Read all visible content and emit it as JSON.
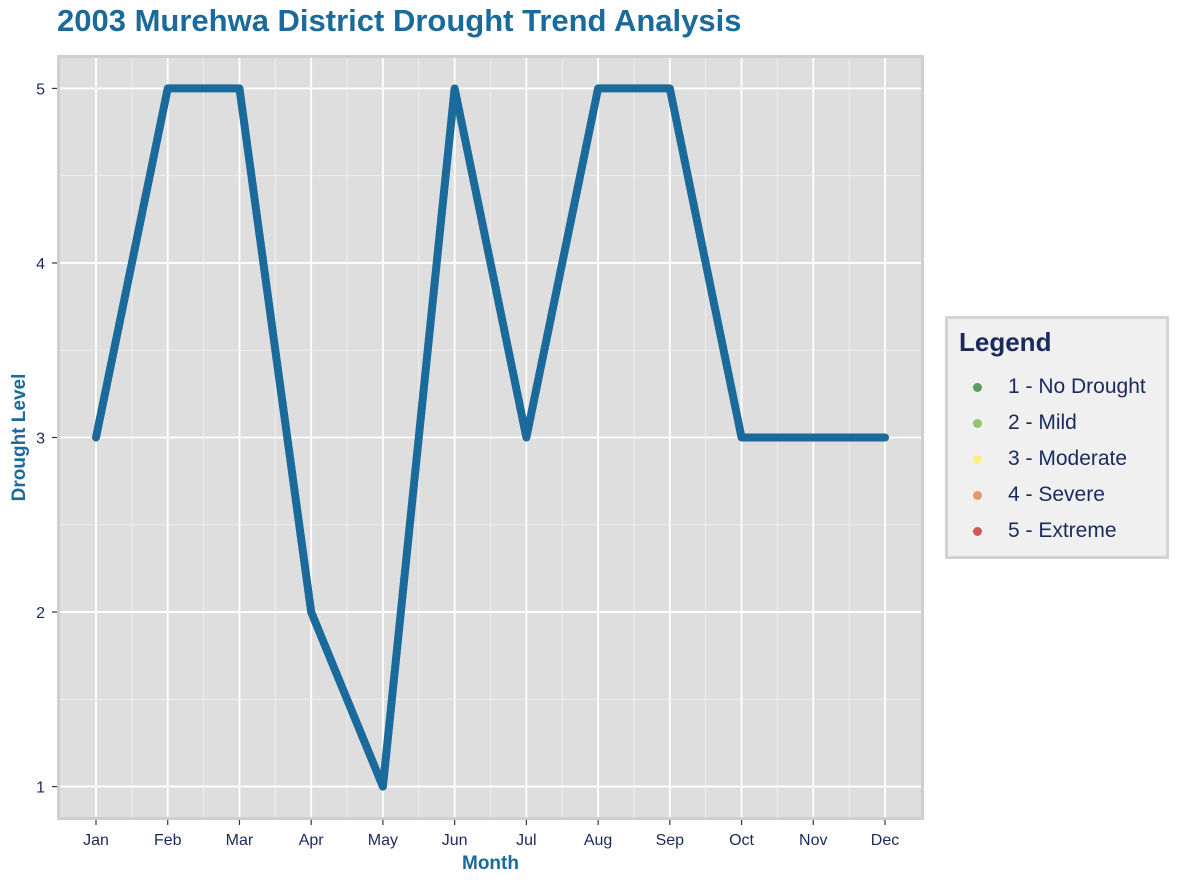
{
  "title": "2003 Murehwa District Drought Trend Analysis",
  "colors": {
    "title": "#1a6a9c",
    "line": "#1a6a9c",
    "panel_bg": "#dedede",
    "grid": "#ffffff",
    "axis_title": "#1a6a9c",
    "tick_text": "#1b2a5c"
  },
  "chart_data": {
    "type": "line",
    "title": "2003 Murehwa District Drought Trend Analysis",
    "xlabel": "Month",
    "ylabel": "Drought Level",
    "categories": [
      "Jan",
      "Feb",
      "Mar",
      "Apr",
      "May",
      "Jun",
      "Jul",
      "Aug",
      "Sep",
      "Oct",
      "Nov",
      "Dec"
    ],
    "values": [
      3,
      5,
      5,
      2,
      1,
      5,
      3,
      5,
      5,
      3,
      3,
      3
    ],
    "y_ticks": [
      1,
      2,
      3,
      4,
      5
    ],
    "ylim": [
      0.82,
      5.18
    ],
    "grid": true,
    "legend_position": "right"
  },
  "legend": {
    "title": "Legend",
    "items": [
      {
        "label": "1 - No Drought",
        "color": "#2e7d32"
      },
      {
        "label": "2 - Mild",
        "color": "#7cb342"
      },
      {
        "label": "3 - Moderate",
        "color": "#ffee58"
      },
      {
        "label": "4 - Severe",
        "color": "#e07b39"
      },
      {
        "label": "5 - Extreme",
        "color": "#c62828"
      }
    ]
  }
}
